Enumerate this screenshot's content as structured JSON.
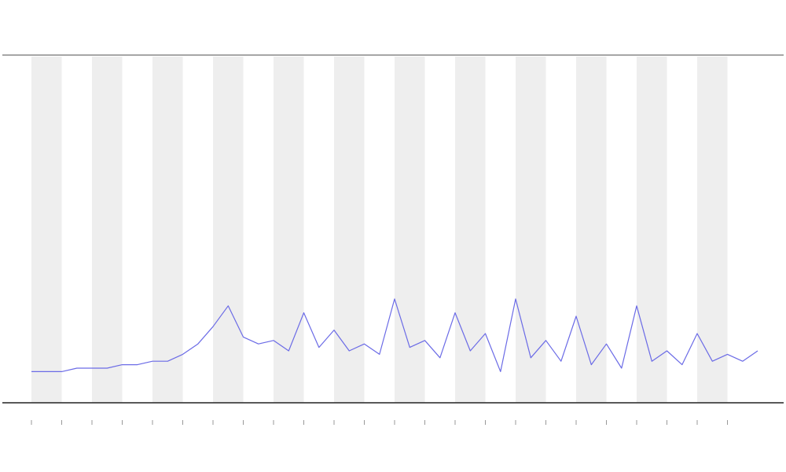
{
  "chart_data": {
    "type": "line",
    "x": [
      0,
      0.5,
      1,
      1.5,
      2,
      2.5,
      3,
      3.5,
      4,
      4.5,
      5,
      5.5,
      6,
      6.5,
      7,
      7.5,
      8,
      8.5,
      9,
      9.5,
      10,
      10.5,
      11,
      11.5,
      12,
      12.5,
      13,
      13.5,
      14,
      14.5,
      15,
      15.5,
      16,
      16.5,
      17,
      17.5,
      18,
      18.5,
      19,
      19.5,
      20,
      20.5,
      21,
      21.5,
      22,
      22.5,
      23,
      23.5,
      24
    ],
    "series": [
      {
        "color": "#6b6be6",
        "values": [
          9,
          9,
          9,
          10,
          10,
          10,
          11,
          11,
          12,
          12,
          14,
          17,
          22,
          28,
          19,
          17,
          18,
          15,
          26,
          16,
          21,
          15,
          17,
          14,
          30,
          16,
          18,
          13,
          26,
          15,
          20,
          9,
          30,
          13,
          18,
          12,
          25,
          11,
          17,
          10,
          28,
          12,
          15,
          11,
          20,
          12,
          14,
          12,
          15
        ]
      }
    ],
    "xlim": [
      0,
      24
    ],
    "ylim": [
      0,
      100
    ],
    "xticks": [
      0,
      1,
      2,
      3,
      4,
      5,
      6,
      7,
      8,
      9,
      10,
      11,
      12,
      13,
      14,
      15,
      16,
      17,
      18,
      19,
      20,
      21,
      22,
      23
    ],
    "shaded_bands": [
      [
        0,
        1
      ],
      [
        2,
        3
      ],
      [
        4,
        5
      ],
      [
        6,
        7
      ],
      [
        8,
        9
      ],
      [
        10,
        11
      ],
      [
        12,
        13
      ],
      [
        14,
        15
      ],
      [
        16,
        17
      ],
      [
        18,
        19
      ],
      [
        20,
        21
      ],
      [
        22,
        23
      ]
    ],
    "band_color": "#eeeeee"
  }
}
